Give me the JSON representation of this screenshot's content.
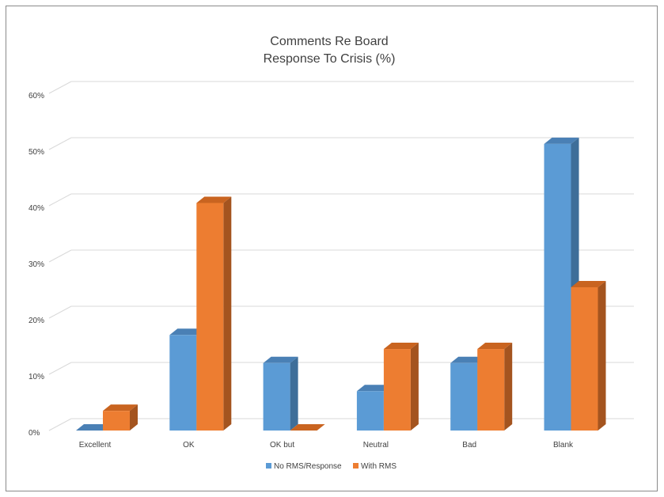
{
  "chart_data": {
    "type": "bar",
    "title_lines": [
      "Comments Re Board",
      "Response To Crisis (%)"
    ],
    "categories": [
      "Excellent",
      "OK",
      "OK but",
      "Neutral",
      "Bad",
      "Blank"
    ],
    "series": [
      {
        "name": "No RMS/Response",
        "values": [
          0,
          17,
          12,
          7,
          12,
          51
        ],
        "color": "#5B9BD5",
        "side_color": "#3E6E99",
        "top_color": "#4A80B5"
      },
      {
        "name": "With RMS",
        "values": [
          3.5,
          40.5,
          0,
          14.5,
          14.5,
          25.5
        ],
        "color": "#ED7D31",
        "side_color": "#A4541F",
        "top_color": "#C96420"
      }
    ],
    "ylim": [
      0,
      60
    ],
    "yticks": [
      "0%",
      "10%",
      "20%",
      "30%",
      "40%",
      "50%",
      "60%"
    ],
    "ytick_values": [
      0,
      10,
      20,
      30,
      40,
      50,
      60
    ],
    "grid": true,
    "legend_position": "bottom",
    "style": "3d-column"
  }
}
